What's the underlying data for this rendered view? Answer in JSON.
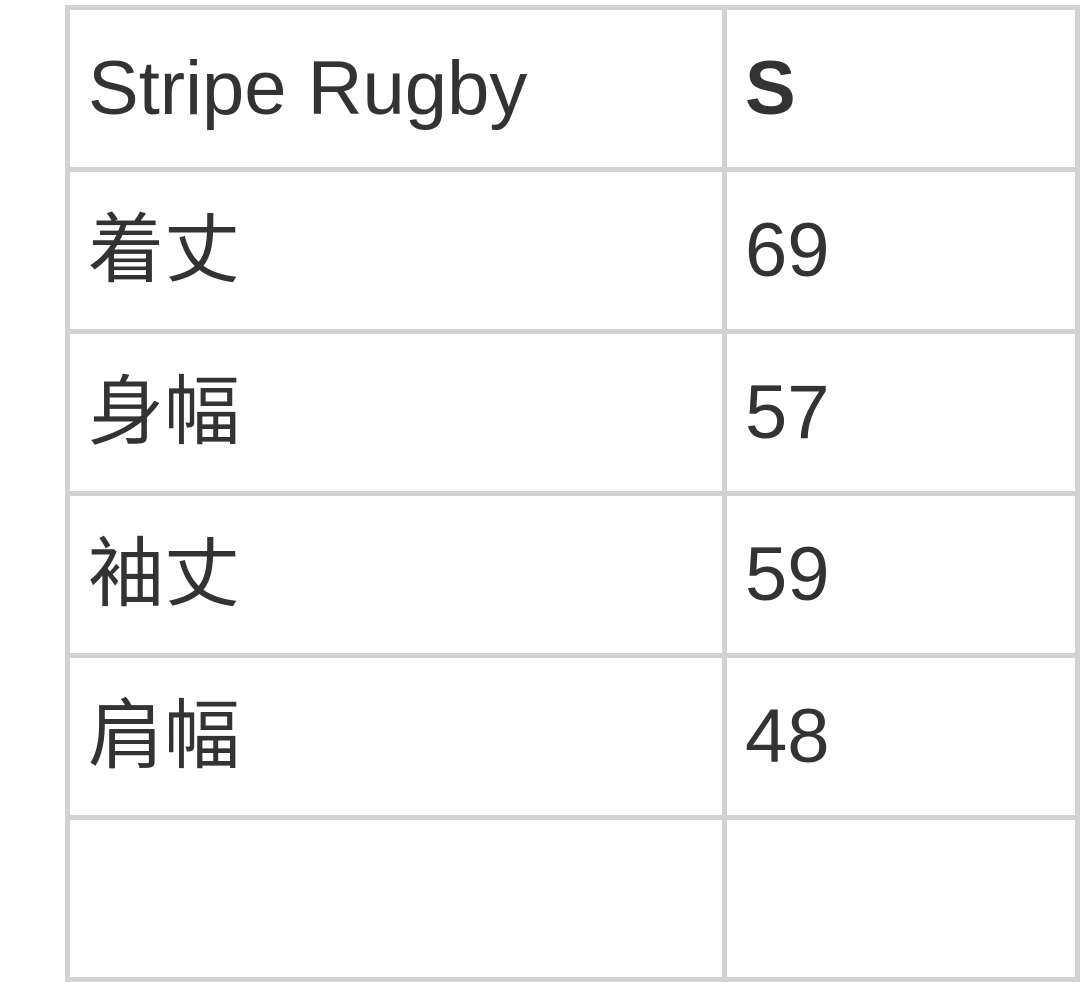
{
  "table": {
    "header": {
      "label": "Stripe Rugby",
      "size": "S"
    },
    "rows": [
      {
        "label": "着丈",
        "value": "69"
      },
      {
        "label": "身幅",
        "value": "57"
      },
      {
        "label": "袖丈",
        "value": "59"
      },
      {
        "label": "肩幅",
        "value": "48"
      }
    ]
  }
}
